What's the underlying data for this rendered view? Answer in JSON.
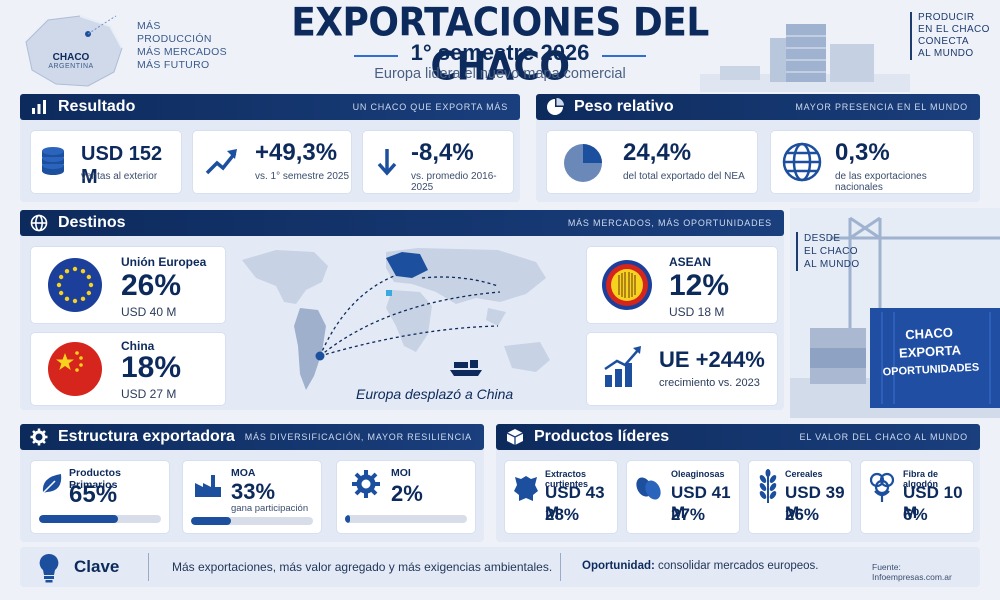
{
  "header": {
    "map_label_1": "CHACO",
    "map_label_2": "ARGENTINA",
    "slogan": [
      "MÁS",
      "PRODUCCIÓN",
      "MÁS MERCADOS",
      "MÁS FUTURO"
    ],
    "title": "EXPORTACIONES DEL CHACO",
    "subtitle": "1° semestre 2026",
    "tagline": "Europa lidera el nuevo mapa comercial",
    "right_text": [
      "PRODUCIR",
      "EN EL CHACO",
      "CONECTA",
      "AL MUNDO"
    ]
  },
  "resultado": {
    "label": "Resultado",
    "tag": "UN CHACO QUE EXPORTA MÁS",
    "cards": [
      {
        "icon": "coins-icon",
        "value": "USD 152 M",
        "caption": "ventas al exterior"
      },
      {
        "icon": "trend-up-icon",
        "value": "+49,3%",
        "caption": "vs. 1° semestre 2025"
      },
      {
        "icon": "arrow-down-icon",
        "value": "-8,4%",
        "caption": "vs. promedio 2016-2025"
      }
    ]
  },
  "peso": {
    "label": "Peso relativo",
    "tag": "MAYOR PRESENCIA EN EL MUNDO",
    "cards": [
      {
        "icon": "pie-icon",
        "value": "24,4%",
        "caption": "del total exportado del NEA"
      },
      {
        "icon": "globe-icon",
        "value": "0,3%",
        "caption": "de las exportaciones nacionales"
      }
    ]
  },
  "destinos": {
    "label": "Destinos",
    "tag": "MÁS MERCADOS, MÁS OPORTUNIDADES",
    "map_caption": "Europa desplazó a China",
    "ue": {
      "name": "Unión Europea",
      "pct": "26%",
      "usd": "USD 40 M"
    },
    "china": {
      "name": "China",
      "pct": "18%",
      "usd": "USD 27 M"
    },
    "asean": {
      "name": "ASEAN",
      "pct": "12%",
      "usd": "USD 18 M"
    },
    "growth": {
      "value": "UE +244%",
      "caption": "crecimiento vs. 2023"
    }
  },
  "side": {
    "desde": [
      "DESDE",
      "EL CHACO",
      "AL MUNDO"
    ],
    "container": [
      "CHACO",
      "EXPORTA",
      "OPORTUNIDADES"
    ]
  },
  "estructura": {
    "label": "Estructura exportadora",
    "tag": "MÁS DIVERSIFICACIÓN, MAYOR RESILIENCIA",
    "items": [
      {
        "icon": "leaf-icon",
        "name": "Productos Primarios",
        "pct": "65%",
        "note": "",
        "level": 0.65
      },
      {
        "icon": "factory-icon",
        "name": "MOA",
        "pct": "33%",
        "note": "gana participación",
        "level": 0.33
      },
      {
        "icon": "gear-icon",
        "name": "MOI",
        "pct": "2%",
        "note": "",
        "level": 0.02
      }
    ]
  },
  "productos": {
    "label": "Productos líderes",
    "tag": "EL VALOR DEL CHACO AL MUNDO",
    "items": [
      {
        "icon": "hide-icon",
        "name": "Extractos curtientes",
        "usd": "USD 43 M",
        "pct": "28%"
      },
      {
        "icon": "seeds-icon",
        "name": "Oleaginosas",
        "usd": "USD 41 M",
        "pct": "27%"
      },
      {
        "icon": "wheat-icon",
        "name": "Cereales",
        "usd": "USD 39 M",
        "pct": "26%"
      },
      {
        "icon": "cotton-icon",
        "name": "Fibra de algodón",
        "usd": "USD 10 M",
        "pct": "6%"
      }
    ]
  },
  "clave": {
    "label": "Clave",
    "text": "Más exportaciones, más valor agregado y más exigencias ambientales.",
    "op_label": "Oportunidad:",
    "op_text": " consolidar mercados europeos.",
    "source": "Fuente: Infoempresas.com.ar"
  }
}
